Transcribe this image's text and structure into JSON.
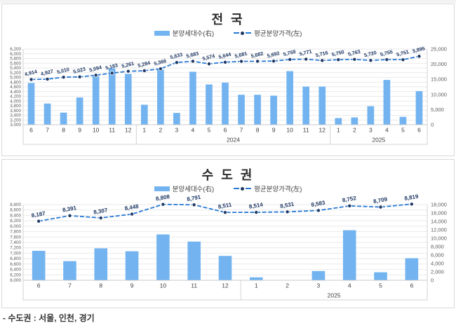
{
  "colors": {
    "bar": "#73b4f0",
    "line": "#2979d4",
    "marker": "#1f3864",
    "label": "#1f3864",
    "grid": "#e2e2e2",
    "border": "#c8c8c8",
    "axis_text": "#595959",
    "month_text": "#3f3f3f"
  },
  "footnote": "- 수도권 : 서울, 인천, 경기",
  "charts": [
    {
      "title": "전 국",
      "legend": {
        "bars": "분양세대수(右)",
        "line": "평균분양가격(左)"
      },
      "chart_data": {
        "type": "bar+line",
        "legend_position": "top",
        "grid": true,
        "label_rotate": -14,
        "label_size": 7.2,
        "categories": [
          "6",
          "7",
          "8",
          "9",
          "10",
          "11",
          "12",
          "1",
          "2",
          "3",
          "4",
          "5",
          "6",
          "7",
          "8",
          "9",
          "10",
          "11",
          "12",
          "1",
          "2",
          "3",
          "4",
          "5",
          "6"
        ],
        "year_groups": [
          {
            "label": "",
            "span": 7
          },
          {
            "label": "2024",
            "span": 12
          },
          {
            "label": "2025",
            "span": 6
          }
        ],
        "left_axis": {
          "min": 3000,
          "max": 6200,
          "step": 200
        },
        "right_axis": {
          "min": 0,
          "max": 25000,
          "step": 5000
        },
        "series": [
          {
            "name": "분양세대수(右)",
            "type": "bar",
            "axis": "right",
            "values": [
              13800,
              7000,
              4000,
              9000,
              16000,
              18600,
              16800,
              6600,
              18200,
              3900,
              17500,
              13300,
              13900,
              9900,
              9900,
              9600,
              17700,
              12600,
              12600,
              2200,
              2400,
              6100,
              14800,
              2600,
              11100
            ]
          },
          {
            "name": "평균분양가격(左)",
            "type": "line",
            "axis": "left",
            "labels": true,
            "values": [
              4914,
              4927,
              5010,
              5023,
              5094,
              5183,
              5261,
              5284,
              5366,
              5633,
              5683,
              5574,
              5644,
              5681,
              5682,
              5692,
              5759,
              5771,
              5716,
              5750,
              5763,
              5720,
              5755,
              5751,
              5895
            ]
          }
        ]
      }
    },
    {
      "title": "수 도 권",
      "legend": {
        "bars": "분양세대수(右)",
        "line": "평균분양가격(左)"
      },
      "chart_data": {
        "type": "bar+line",
        "legend_position": "top",
        "grid": true,
        "label_rotate": -10,
        "label_size": 8,
        "categories": [
          "6",
          "7",
          "8",
          "9",
          "10",
          "11",
          "12",
          "1",
          "2",
          "3",
          "4",
          "5",
          "6"
        ],
        "year_groups": [
          {
            "label": "",
            "span": 7
          },
          {
            "label": "2025",
            "span": 6
          }
        ],
        "left_axis": {
          "min": 6000,
          "max": 8800,
          "step": 200
        },
        "right_axis": {
          "min": 0,
          "max": 18000,
          "step": 2000
        },
        "series": [
          {
            "name": "분양세대수(右)",
            "type": "bar",
            "axis": "right",
            "values": [
              7000,
              4550,
              7600,
              6900,
              10900,
              9200,
              5800,
              700,
              0,
              2200,
              11900,
              1900,
              5250
            ]
          },
          {
            "name": "평균분양가격(左)",
            "type": "line",
            "axis": "left",
            "labels": true,
            "values": [
              8187,
              8391,
              8307,
              8448,
              8808,
              8791,
              8511,
              8514,
              8531,
              8583,
              8752,
              8709,
              8819
            ]
          }
        ]
      }
    }
  ]
}
